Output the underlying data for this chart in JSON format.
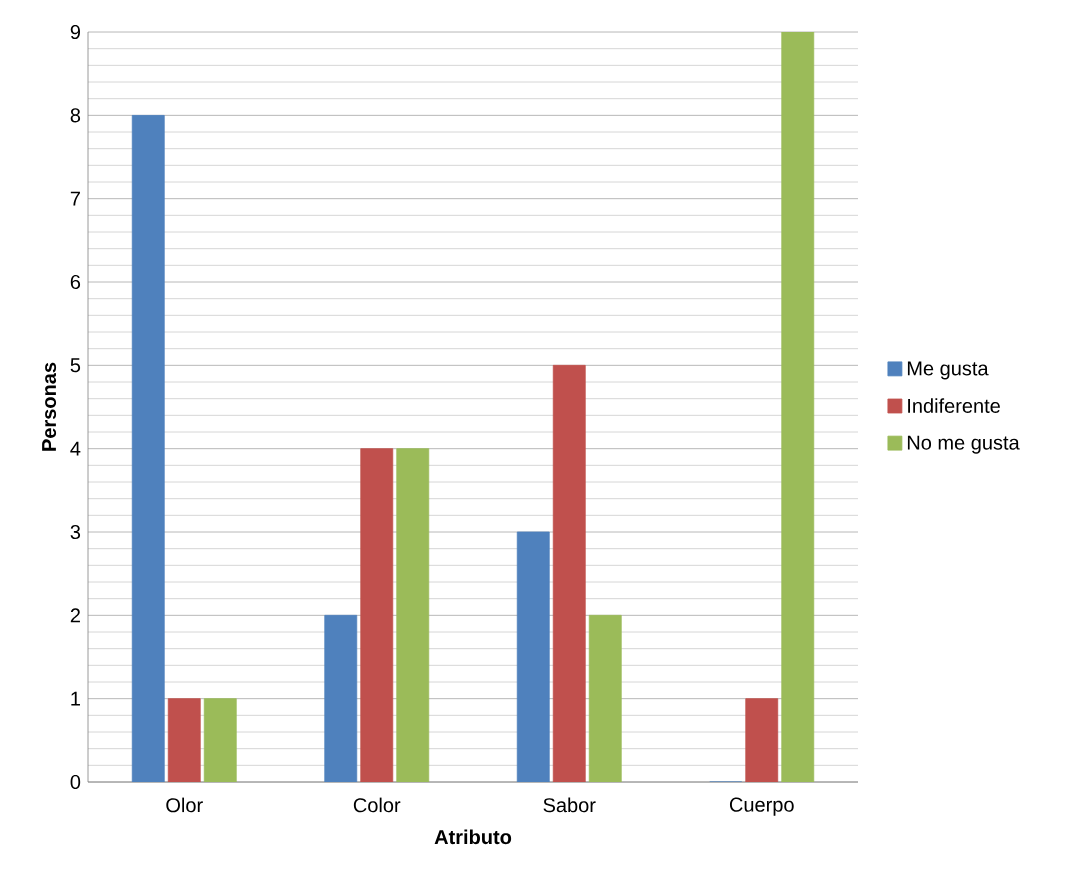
{
  "chart_data": {
    "type": "bar",
    "xlabel": "Atributo",
    "ylabel": "Personas",
    "categories": [
      "Olor",
      "Color",
      "Sabor",
      "Cuerpo"
    ],
    "series": [
      {
        "name": "Me gusta",
        "color": "#4f81bd",
        "values": [
          8,
          2,
          3,
          0
        ]
      },
      {
        "name": "Indiferente",
        "color": "#c0504d",
        "values": [
          1,
          4,
          5,
          1
        ]
      },
      {
        "name": "No me gusta",
        "color": "#9bbb59",
        "values": [
          1,
          4,
          2,
          9
        ]
      }
    ],
    "ylim": [
      0,
      9
    ],
    "yticks": [
      0,
      1,
      2,
      3,
      4,
      5,
      6,
      7,
      8,
      9
    ],
    "grid": true,
    "legend": "right"
  }
}
